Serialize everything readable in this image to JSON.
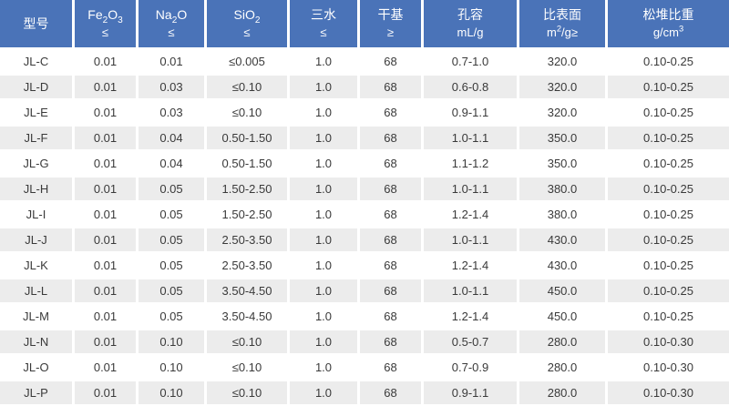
{
  "colors": {
    "header_bg": "#4a73b8",
    "header_text": "#ffffff",
    "row_alt_bg": "#ececec",
    "body_text": "#3a3a3a"
  },
  "table": {
    "columns": [
      {
        "key": "model",
        "line1": [
          "型号"
        ],
        "line2": null,
        "plain": "型号"
      },
      {
        "key": "fe2o3_max",
        "line1": [
          "Fe",
          {
            "sub": "2"
          },
          "O",
          {
            "sub": "3"
          }
        ],
        "line2": [
          "≤"
        ],
        "plain": "Fe2O3 ≤"
      },
      {
        "key": "na2o_max",
        "line1": [
          "Na",
          {
            "sub": "2"
          },
          "O"
        ],
        "line2": [
          "≤"
        ],
        "plain": "Na2O ≤"
      },
      {
        "key": "sio2_max",
        "line1": [
          "SiO",
          {
            "sub": "2"
          }
        ],
        "line2": [
          "≤"
        ],
        "plain": "SiO2 ≤"
      },
      {
        "key": "trihydrate_max",
        "line1": [
          "三水"
        ],
        "line2": [
          "≤"
        ],
        "plain": "三水 ≤"
      },
      {
        "key": "dry_basis_min",
        "line1": [
          "干基"
        ],
        "line2": [
          "≥"
        ],
        "plain": "干基 ≥"
      },
      {
        "key": "pore_volume",
        "line1": [
          "孔容"
        ],
        "line2": [
          "mL/g"
        ],
        "plain": "孔容 mL/g"
      },
      {
        "key": "surface_area",
        "line1": [
          "比表面"
        ],
        "line2": [
          "m",
          {
            "sup": "2"
          },
          "/g≥"
        ],
        "plain": "比表面 m2/g≥"
      },
      {
        "key": "bulk_density",
        "line1": [
          "松堆比重"
        ],
        "line2": [
          "g/cm",
          {
            "sup": "3"
          }
        ],
        "plain": "松堆比重 g/cm3"
      }
    ],
    "rows": [
      [
        "JL-C",
        "0.01",
        "0.01",
        "≤0.005",
        "1.0",
        "68",
        "0.7-1.0",
        "320.0",
        "0.10-0.25"
      ],
      [
        "JL-D",
        "0.01",
        "0.03",
        "≤0.10",
        "1.0",
        "68",
        "0.6-0.8",
        "320.0",
        "0.10-0.25"
      ],
      [
        "JL-E",
        "0.01",
        "0.03",
        "≤0.10",
        "1.0",
        "68",
        "0.9-1.1",
        "320.0",
        "0.10-0.25"
      ],
      [
        "JL-F",
        "0.01",
        "0.04",
        "0.50-1.50",
        "1.0",
        "68",
        "1.0-1.1",
        "350.0",
        "0.10-0.25"
      ],
      [
        "JL-G",
        "0.01",
        "0.04",
        "0.50-1.50",
        "1.0",
        "68",
        "1.1-1.2",
        "350.0",
        "0.10-0.25"
      ],
      [
        "JL-H",
        "0.01",
        "0.05",
        "1.50-2.50",
        "1.0",
        "68",
        "1.0-1.1",
        "380.0",
        "0.10-0.25"
      ],
      [
        "JL-I",
        "0.01",
        "0.05",
        "1.50-2.50",
        "1.0",
        "68",
        "1.2-1.4",
        "380.0",
        "0.10-0.25"
      ],
      [
        "JL-J",
        "0.01",
        "0.05",
        "2.50-3.50",
        "1.0",
        "68",
        "1.0-1.1",
        "430.0",
        "0.10-0.25"
      ],
      [
        "JL-K",
        "0.01",
        "0.05",
        "2.50-3.50",
        "1.0",
        "68",
        "1.2-1.4",
        "430.0",
        "0.10-0.25"
      ],
      [
        "JL-L",
        "0.01",
        "0.05",
        "3.50-4.50",
        "1.0",
        "68",
        "1.0-1.1",
        "450.0",
        "0.10-0.25"
      ],
      [
        "JL-M",
        "0.01",
        "0.05",
        "3.50-4.50",
        "1.0",
        "68",
        "1.2-1.4",
        "450.0",
        "0.10-0.25"
      ],
      [
        "JL-N",
        "0.01",
        "0.10",
        "≤0.10",
        "1.0",
        "68",
        "0.5-0.7",
        "280.0",
        "0.10-0.30"
      ],
      [
        "JL-O",
        "0.01",
        "0.10",
        "≤0.10",
        "1.0",
        "68",
        "0.7-0.9",
        "280.0",
        "0.10-0.30"
      ],
      [
        "JL-P",
        "0.01",
        "0.10",
        "≤0.10",
        "1.0",
        "68",
        "0.9-1.1",
        "280.0",
        "0.10-0.30"
      ]
    ]
  },
  "chart_data": {
    "type": "table",
    "title": "",
    "columns": [
      "型号",
      "Fe2O3 ≤",
      "Na2O ≤",
      "SiO2 ≤",
      "三水 ≤",
      "干基 ≥",
      "孔容 mL/g",
      "比表面 m2/g≥",
      "松堆比重 g/cm3"
    ],
    "rows": [
      [
        "JL-C",
        "0.01",
        "0.01",
        "≤0.005",
        "1.0",
        "68",
        "0.7-1.0",
        "320.0",
        "0.10-0.25"
      ],
      [
        "JL-D",
        "0.01",
        "0.03",
        "≤0.10",
        "1.0",
        "68",
        "0.6-0.8",
        "320.0",
        "0.10-0.25"
      ],
      [
        "JL-E",
        "0.01",
        "0.03",
        "≤0.10",
        "1.0",
        "68",
        "0.9-1.1",
        "320.0",
        "0.10-0.25"
      ],
      [
        "JL-F",
        "0.01",
        "0.04",
        "0.50-1.50",
        "1.0",
        "68",
        "1.0-1.1",
        "350.0",
        "0.10-0.25"
      ],
      [
        "JL-G",
        "0.01",
        "0.04",
        "0.50-1.50",
        "1.0",
        "68",
        "1.1-1.2",
        "350.0",
        "0.10-0.25"
      ],
      [
        "JL-H",
        "0.01",
        "0.05",
        "1.50-2.50",
        "1.0",
        "68",
        "1.0-1.1",
        "380.0",
        "0.10-0.25"
      ],
      [
        "JL-I",
        "0.01",
        "0.05",
        "1.50-2.50",
        "1.0",
        "68",
        "1.2-1.4",
        "380.0",
        "0.10-0.25"
      ],
      [
        "JL-J",
        "0.01",
        "0.05",
        "2.50-3.50",
        "1.0",
        "68",
        "1.0-1.1",
        "430.0",
        "0.10-0.25"
      ],
      [
        "JL-K",
        "0.01",
        "0.05",
        "2.50-3.50",
        "1.0",
        "68",
        "1.2-1.4",
        "430.0",
        "0.10-0.25"
      ],
      [
        "JL-L",
        "0.01",
        "0.05",
        "3.50-4.50",
        "1.0",
        "68",
        "1.0-1.1",
        "450.0",
        "0.10-0.25"
      ],
      [
        "JL-M",
        "0.01",
        "0.05",
        "3.50-4.50",
        "1.0",
        "68",
        "1.2-1.4",
        "450.0",
        "0.10-0.25"
      ],
      [
        "JL-N",
        "0.01",
        "0.10",
        "≤0.10",
        "1.0",
        "68",
        "0.5-0.7",
        "280.0",
        "0.10-0.30"
      ],
      [
        "JL-O",
        "0.01",
        "0.10",
        "≤0.10",
        "1.0",
        "68",
        "0.7-0.9",
        "280.0",
        "0.10-0.30"
      ],
      [
        "JL-P",
        "0.01",
        "0.10",
        "≤0.10",
        "1.0",
        "68",
        "0.9-1.1",
        "280.0",
        "0.10-0.30"
      ]
    ]
  }
}
